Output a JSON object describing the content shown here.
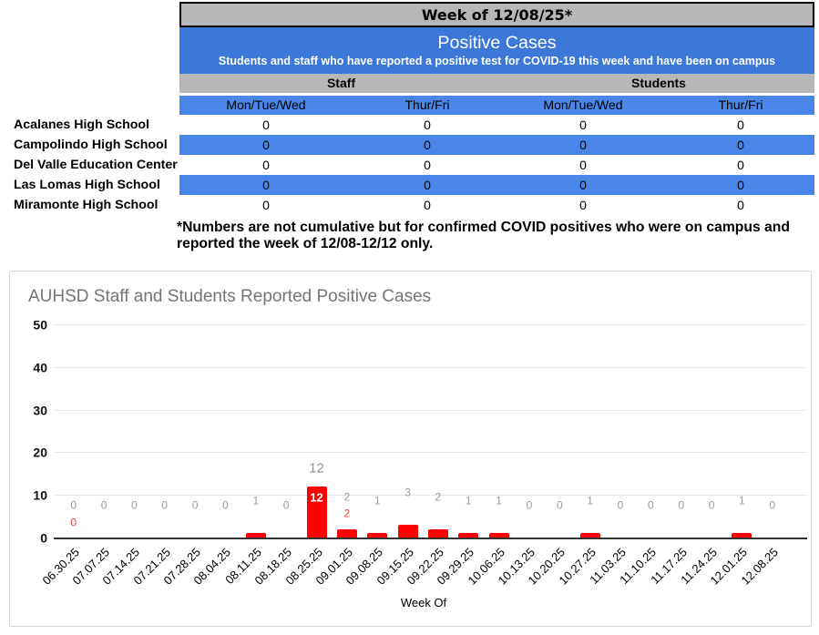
{
  "table": {
    "week_banner": "Week of 12/08/25*",
    "banner": {
      "title": "Positive Cases",
      "subtitle": "Students and staff who have reported a positive test for COVID-19 this week and have been on campus"
    },
    "group_headers": [
      "Staff",
      "Students"
    ],
    "day_headers": [
      "Mon/Tue/Wed",
      "Thur/Fri",
      "Mon/Tue/Wed",
      "Thur/Fri"
    ],
    "rows": [
      {
        "school": "Acalanes High School",
        "values": [
          "0",
          "0",
          "0",
          "0"
        ]
      },
      {
        "school": "Campolindo High School",
        "values": [
          "0",
          "0",
          "0",
          "0"
        ]
      },
      {
        "school": "Del Valle Education Center",
        "values": [
          "0",
          "0",
          "0",
          "0"
        ]
      },
      {
        "school": "Las Lomas High School",
        "values": [
          "0",
          "0",
          "0",
          "0"
        ]
      },
      {
        "school": "Miramonte High School",
        "values": [
          "0",
          "0",
          "0",
          "0"
        ]
      }
    ],
    "footnote_lines": [
      "*Numbers are not cumulative but for confirmed COVID positives who were on campus and",
      "reported the week of 12/08-12/12 only."
    ],
    "colors": {
      "header_gray": "#b7b7b7",
      "banner_blue": "#3c78d8",
      "row_blue": "#4a86e8"
    }
  },
  "chart_data": {
    "type": "bar",
    "title": "AUHSD Staff and Students Reported Positive Cases",
    "xlabel": "Week Of",
    "ylabel": "",
    "ylim": [
      0,
      50
    ],
    "yticks": [
      "0",
      "10",
      "20",
      "30",
      "40",
      "50"
    ],
    "categories": [
      "06.30.25",
      "07.07.25",
      "07.14.25",
      "07.21.25",
      "07.28.25",
      "08.04.25",
      "08.11.25",
      "08.18.25",
      "08.25.25",
      "09.01.25",
      "09.08.25",
      "09.15.25",
      "09.22.25",
      "09.29.25",
      "10.06.25",
      "10.13.25",
      "10.20.25",
      "10.27.25",
      "11.03.25",
      "11.10.25",
      "11.17.25",
      "11.24.25",
      "12.01.25",
      "12.08.25"
    ],
    "values": [
      0,
      0,
      0,
      0,
      0,
      0,
      1,
      0,
      12,
      2,
      1,
      3,
      2,
      1,
      1,
      0,
      0,
      1,
      0,
      0,
      0,
      0,
      1,
      0
    ],
    "bar_color": "#ff0000",
    "grid": true,
    "legend": "none",
    "annotations": {
      "above_labels": [
        "0",
        "0",
        "0",
        "0",
        "0",
        "0",
        "1",
        "0",
        "12",
        "2",
        "1",
        "3",
        "2",
        "1",
        "1",
        "0",
        "0",
        "1",
        "0",
        "0",
        "0",
        "0",
        "1",
        "0"
      ],
      "red_outside": [
        {
          "index": 0,
          "text": "0"
        },
        {
          "index": 9,
          "text": "2"
        }
      ],
      "inside_bar": [
        {
          "index": 8,
          "text": "12"
        }
      ],
      "gray_color": "#999999",
      "red_color": "#e9483b"
    }
  }
}
